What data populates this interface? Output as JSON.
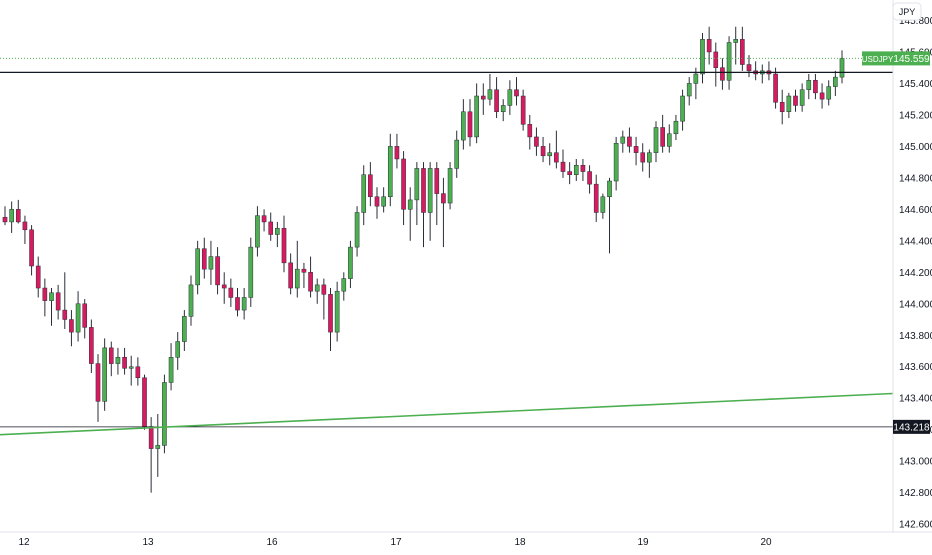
{
  "chart_data": {
    "type": "candlestick",
    "symbol": "USDJPY",
    "currency": "JPY",
    "last_price": 145.559,
    "last_price_label": "145.559",
    "marked_level": 143.218,
    "marked_level_label": "143.218",
    "resistance_level": 145.47,
    "trendline": {
      "start": 143.2,
      "end": 143.43
    },
    "ylim": [
      142.55,
      145.93
    ],
    "y_ticks": [
      "145.800",
      "145.600",
      "145.400",
      "145.200",
      "145.000",
      "144.800",
      "144.600",
      "144.400",
      "144.200",
      "144.000",
      "143.800",
      "143.600",
      "143.400",
      "143.200",
      "143.000",
      "142.800",
      "142.600"
    ],
    "x_ticks": [
      "12",
      "13",
      "16",
      "17",
      "18",
      "19",
      "20"
    ],
    "colors": {
      "up": "#4caf50",
      "down": "#d81b60",
      "wick": "#2a2e39",
      "trendline": "#4caf50",
      "tag": "#4caf50"
    },
    "candles": [
      [
        144.55,
        144.62,
        144.5,
        144.52
      ],
      [
        144.52,
        144.65,
        144.45,
        144.6
      ],
      [
        144.6,
        144.66,
        144.51,
        144.52
      ],
      [
        144.52,
        144.56,
        144.38,
        144.47
      ],
      [
        144.47,
        144.5,
        144.18,
        144.24
      ],
      [
        144.24,
        144.3,
        144.04,
        144.1
      ],
      [
        144.1,
        144.16,
        143.92,
        144.02
      ],
      [
        144.02,
        144.1,
        143.86,
        144.07
      ],
      [
        144.07,
        144.12,
        143.9,
        143.96
      ],
      [
        143.96,
        144.2,
        143.84,
        143.9
      ],
      [
        143.9,
        143.96,
        143.73,
        143.82
      ],
      [
        143.82,
        144.08,
        143.76,
        144.0
      ],
      [
        144.0,
        144.03,
        143.78,
        143.85
      ],
      [
        143.85,
        143.9,
        143.56,
        143.62
      ],
      [
        143.62,
        143.68,
        143.25,
        143.38
      ],
      [
        143.38,
        143.78,
        143.32,
        143.72
      ],
      [
        143.72,
        143.76,
        143.54,
        143.62
      ],
      [
        143.62,
        143.72,
        143.55,
        143.66
      ],
      [
        143.66,
        143.72,
        143.55,
        143.59
      ],
      [
        143.59,
        143.67,
        143.48,
        143.6
      ],
      [
        143.6,
        143.66,
        143.48,
        143.53
      ],
      [
        143.53,
        143.55,
        143.2,
        143.22
      ],
      [
        143.22,
        143.28,
        142.8,
        143.08
      ],
      [
        143.08,
        143.3,
        142.9,
        143.1
      ],
      [
        143.1,
        143.55,
        143.05,
        143.5
      ],
      [
        143.5,
        143.75,
        143.45,
        143.66
      ],
      [
        143.66,
        143.82,
        143.58,
        143.76
      ],
      [
        143.76,
        143.96,
        143.7,
        143.92
      ],
      [
        143.92,
        144.18,
        143.86,
        144.12
      ],
      [
        144.12,
        144.4,
        144.06,
        144.35
      ],
      [
        144.35,
        144.42,
        144.16,
        144.22
      ],
      [
        144.22,
        144.4,
        144.12,
        144.3
      ],
      [
        144.3,
        144.36,
        144.06,
        144.12
      ],
      [
        144.12,
        144.2,
        144.0,
        144.1
      ],
      [
        144.1,
        144.16,
        143.98,
        144.04
      ],
      [
        144.04,
        144.1,
        143.92,
        143.96
      ],
      [
        143.96,
        144.1,
        143.9,
        144.04
      ],
      [
        144.04,
        144.42,
        143.98,
        144.36
      ],
      [
        144.36,
        144.62,
        144.3,
        144.56
      ],
      [
        144.56,
        144.6,
        144.46,
        144.52
      ],
      [
        144.52,
        144.58,
        144.4,
        144.44
      ],
      [
        144.44,
        144.52,
        144.36,
        144.48
      ],
      [
        144.48,
        144.56,
        144.2,
        144.26
      ],
      [
        144.26,
        144.32,
        144.06,
        144.1
      ],
      [
        144.1,
        144.4,
        144.04,
        144.22
      ],
      [
        144.22,
        144.26,
        144.1,
        144.2
      ],
      [
        144.2,
        144.3,
        144.04,
        144.08
      ],
      [
        144.08,
        144.16,
        144.0,
        144.12
      ],
      [
        144.12,
        144.16,
        143.9,
        144.06
      ],
      [
        144.06,
        144.1,
        143.7,
        143.82
      ],
      [
        143.82,
        144.14,
        143.76,
        144.08
      ],
      [
        144.08,
        144.2,
        144.02,
        144.16
      ],
      [
        144.16,
        144.4,
        144.1,
        144.36
      ],
      [
        144.36,
        144.62,
        144.3,
        144.58
      ],
      [
        144.58,
        144.88,
        144.5,
        144.82
      ],
      [
        144.82,
        144.9,
        144.62,
        144.68
      ],
      [
        144.68,
        144.74,
        144.54,
        144.62
      ],
      [
        144.62,
        144.74,
        144.58,
        144.68
      ],
      [
        144.68,
        145.08,
        144.62,
        145.0
      ],
      [
        145.0,
        145.08,
        144.86,
        144.92
      ],
      [
        144.92,
        144.97,
        144.5,
        144.6
      ],
      [
        144.6,
        144.74,
        144.4,
        144.66
      ],
      [
        144.66,
        144.9,
        144.5,
        144.86
      ],
      [
        144.86,
        144.9,
        144.36,
        144.58
      ],
      [
        144.58,
        144.9,
        144.4,
        144.86
      ],
      [
        144.86,
        144.9,
        144.5,
        144.7
      ],
      [
        144.7,
        144.8,
        144.36,
        144.64
      ],
      [
        144.64,
        144.9,
        144.6,
        144.86
      ],
      [
        144.86,
        145.1,
        144.8,
        145.04
      ],
      [
        145.04,
        145.3,
        144.98,
        145.22
      ],
      [
        145.22,
        145.3,
        145.0,
        145.06
      ],
      [
        145.06,
        145.4,
        145.02,
        145.32
      ],
      [
        145.32,
        145.4,
        145.2,
        145.3
      ],
      [
        145.3,
        145.46,
        145.26,
        145.36
      ],
      [
        145.36,
        145.44,
        145.18,
        145.22
      ],
      [
        145.22,
        145.3,
        145.16,
        145.26
      ],
      [
        145.26,
        145.42,
        145.2,
        145.36
      ],
      [
        145.36,
        145.44,
        145.26,
        145.32
      ],
      [
        145.32,
        145.36,
        145.1,
        145.14
      ],
      [
        145.14,
        145.2,
        144.98,
        145.06
      ],
      [
        145.06,
        145.12,
        144.94,
        145.0
      ],
      [
        145.0,
        145.06,
        144.9,
        144.94
      ],
      [
        144.94,
        145.02,
        144.88,
        144.96
      ],
      [
        144.96,
        145.1,
        144.86,
        144.9
      ],
      [
        144.9,
        144.98,
        144.8,
        144.84
      ],
      [
        144.84,
        144.9,
        144.76,
        144.82
      ],
      [
        144.82,
        144.92,
        144.78,
        144.88
      ],
      [
        144.88,
        144.92,
        144.78,
        144.84
      ],
      [
        144.84,
        144.88,
        144.7,
        144.76
      ],
      [
        144.76,
        144.82,
        144.52,
        144.58
      ],
      [
        144.58,
        144.7,
        144.54,
        144.68
      ],
      [
        144.68,
        144.8,
        144.32,
        144.78
      ],
      [
        144.78,
        145.06,
        144.72,
        145.02
      ],
      [
        145.02,
        145.1,
        144.96,
        145.06
      ],
      [
        145.06,
        145.12,
        144.96,
        145.0
      ],
      [
        145.0,
        145.06,
        144.88,
        144.96
      ],
      [
        144.96,
        145.02,
        144.84,
        144.9
      ],
      [
        144.9,
        144.98,
        144.8,
        144.96
      ],
      [
        144.96,
        145.16,
        144.9,
        145.12
      ],
      [
        145.12,
        145.2,
        144.96,
        145.0
      ],
      [
        145.0,
        145.14,
        144.96,
        145.08
      ],
      [
        145.08,
        145.2,
        145.04,
        145.16
      ],
      [
        145.16,
        145.36,
        145.1,
        145.32
      ],
      [
        145.32,
        145.44,
        145.26,
        145.4
      ],
      [
        145.4,
        145.5,
        145.3,
        145.46
      ],
      [
        145.46,
        145.72,
        145.4,
        145.68
      ],
      [
        145.68,
        145.76,
        145.52,
        145.6
      ],
      [
        145.6,
        145.66,
        145.38,
        145.5
      ],
      [
        145.5,
        145.56,
        145.36,
        145.42
      ],
      [
        145.42,
        145.7,
        145.36,
        145.66
      ],
      [
        145.66,
        145.76,
        145.52,
        145.68
      ],
      [
        145.68,
        145.76,
        145.48,
        145.52
      ],
      [
        145.52,
        145.58,
        145.44,
        145.48
      ],
      [
        145.48,
        145.54,
        145.42,
        145.46
      ],
      [
        145.46,
        145.52,
        145.4,
        145.48
      ],
      [
        145.48,
        145.54,
        145.42,
        145.46
      ],
      [
        145.46,
        145.5,
        145.24,
        145.28
      ],
      [
        145.28,
        145.36,
        145.14,
        145.22
      ],
      [
        145.22,
        145.34,
        145.18,
        145.32
      ],
      [
        145.32,
        145.36,
        145.22,
        145.26
      ],
      [
        145.26,
        145.4,
        145.22,
        145.36
      ],
      [
        145.36,
        145.46,
        145.3,
        145.42
      ],
      [
        145.42,
        145.46,
        145.3,
        145.34
      ],
      [
        145.34,
        145.4,
        145.24,
        145.3
      ],
      [
        145.3,
        145.42,
        145.26,
        145.38
      ],
      [
        145.38,
        145.48,
        145.32,
        145.44
      ],
      [
        145.44,
        145.61,
        145.4,
        145.56
      ]
    ]
  }
}
